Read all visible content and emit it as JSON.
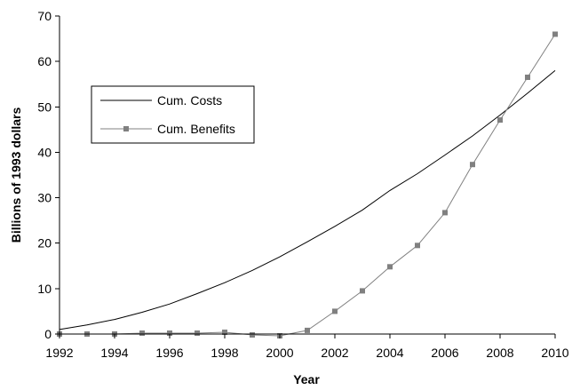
{
  "chart_data": {
    "type": "line",
    "xlabel": "Year",
    "ylabel": "Billions of 1993 dollars",
    "xlim": [
      1992,
      2010
    ],
    "ylim": [
      0,
      70
    ],
    "x_ticks": [
      1992,
      1994,
      1996,
      1998,
      2000,
      2002,
      2004,
      2006,
      2008,
      2010
    ],
    "y_ticks": [
      0,
      10,
      20,
      30,
      40,
      50,
      60,
      70
    ],
    "grid": false,
    "legend_position": "upper-left",
    "series": [
      {
        "name": "Cum. Costs",
        "color": "#000000",
        "marker": "none",
        "x": [
          1992,
          1993,
          1994,
          1995,
          1996,
          1997,
          1998,
          1999,
          2000,
          2001,
          2002,
          2003,
          2004,
          2005,
          2006,
          2007,
          2008,
          2009,
          2010
        ],
        "values": [
          1.0,
          2.0,
          3.2,
          4.8,
          6.6,
          8.9,
          11.3,
          14.0,
          17.0,
          20.3,
          23.7,
          27.3,
          31.6,
          35.3,
          39.4,
          43.6,
          48.2,
          53.0,
          58.0
        ]
      },
      {
        "name": "Cum. Benefits",
        "color": "#808080",
        "marker": "square",
        "x": [
          1992,
          1993,
          1994,
          1995,
          1996,
          1997,
          1998,
          1999,
          2000,
          2001,
          2002,
          2003,
          2004,
          2005,
          2006,
          2007,
          2008,
          2009,
          2010
        ],
        "values": [
          0.0,
          0.0,
          0.0,
          0.2,
          0.2,
          0.2,
          0.4,
          -0.2,
          -0.4,
          0.8,
          5.0,
          9.5,
          14.8,
          19.5,
          26.7,
          37.3,
          47.1,
          56.5,
          66.0
        ]
      }
    ]
  }
}
